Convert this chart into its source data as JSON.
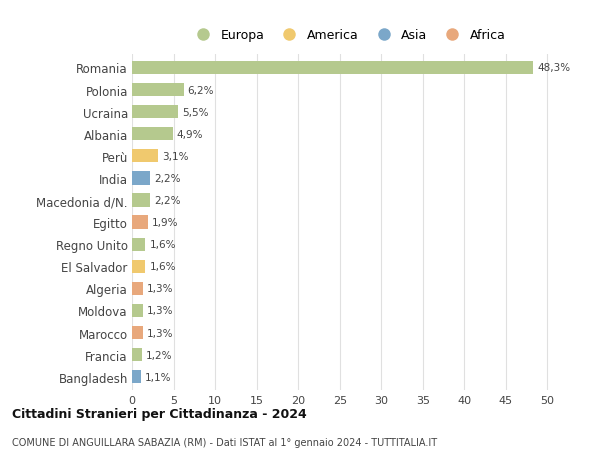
{
  "countries": [
    "Romania",
    "Polonia",
    "Ucraina",
    "Albania",
    "Perù",
    "India",
    "Macedonia d/N.",
    "Egitto",
    "Regno Unito",
    "El Salvador",
    "Algeria",
    "Moldova",
    "Marocco",
    "Francia",
    "Bangladesh"
  ],
  "values": [
    48.3,
    6.2,
    5.5,
    4.9,
    3.1,
    2.2,
    2.2,
    1.9,
    1.6,
    1.6,
    1.3,
    1.3,
    1.3,
    1.2,
    1.1
  ],
  "labels": [
    "48,3%",
    "6,2%",
    "5,5%",
    "4,9%",
    "3,1%",
    "2,2%",
    "2,2%",
    "1,9%",
    "1,6%",
    "1,6%",
    "1,3%",
    "1,3%",
    "1,3%",
    "1,2%",
    "1,1%"
  ],
  "continents": [
    "Europa",
    "Europa",
    "Europa",
    "Europa",
    "America",
    "Asia",
    "Europa",
    "Africa",
    "Europa",
    "America",
    "Africa",
    "Europa",
    "Africa",
    "Europa",
    "Asia"
  ],
  "continent_colors": {
    "Europa": "#b5c98e",
    "America": "#f0c96e",
    "Asia": "#7ba7c9",
    "Africa": "#e8a87c"
  },
  "legend_order": [
    "Europa",
    "America",
    "Asia",
    "Africa"
  ],
  "title": "Cittadini Stranieri per Cittadinanza - 2024",
  "subtitle": "COMUNE DI ANGUILLARA SABAZIA (RM) - Dati ISTAT al 1° gennaio 2024 - TUTTITALIA.IT",
  "xlim": [
    0,
    52
  ],
  "xticks": [
    0,
    5,
    10,
    15,
    20,
    25,
    30,
    35,
    40,
    45,
    50
  ],
  "background_color": "#ffffff",
  "grid_color": "#e0e0e0",
  "bar_height": 0.6
}
